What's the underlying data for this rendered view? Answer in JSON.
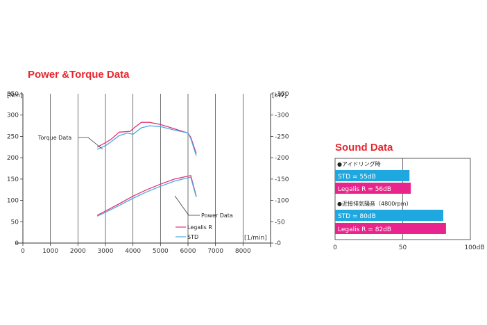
{
  "power_torque": {
    "title": "Power &Torque Data",
    "left_unit": "[Nm]",
    "right_unit": "[kW]",
    "x_unit": "[1/min]",
    "torque_label": "Torque Data",
    "power_label": "Power Data",
    "legend": [
      {
        "name": "Legalis R",
        "color": "#e0337a"
      },
      {
        "name": "STD",
        "color": "#4aa8e0"
      }
    ]
  },
  "sound": {
    "title": "Sound Data",
    "sections": [
      "●アイドリング時",
      "●近接排気騒音（4800rpm）"
    ],
    "bars": [
      {
        "label": "STD = 55dB",
        "value": 55,
        "color": "#1fa8e0"
      },
      {
        "label": "Legalis R = 56dB",
        "value": 56,
        "color": "#e8258c"
      },
      {
        "label": "STD = 80dB",
        "value": 80,
        "color": "#1fa8e0"
      },
      {
        "label": "Legalis R = 82dB",
        "value": 82,
        "color": "#e8258c"
      }
    ],
    "x_ticks": [
      "0",
      "50",
      "100dB"
    ]
  },
  "chart_data": [
    {
      "type": "line",
      "title": "Power &Torque Data",
      "xlabel": "[1/min]",
      "ylabel": "[Nm]",
      "y2label": "[kW]",
      "xlim": [
        0,
        9000
      ],
      "ylim": [
        0,
        350
      ],
      "y2lim": [
        0,
        350
      ],
      "x_ticks": [
        0,
        1000,
        2000,
        3000,
        4000,
        5000,
        6000,
        7000,
        8000
      ],
      "y_ticks": [
        0,
        50,
        100,
        150,
        200,
        250,
        300,
        350
      ],
      "grid": true,
      "legend_position": "bottom-right",
      "series": [
        {
          "name": "Legalis R",
          "group": "torque",
          "axis": "left",
          "color": "#e0337a",
          "x": [
            2700,
            3000,
            3200,
            3500,
            3900,
            4000,
            4300,
            4600,
            5000,
            5500,
            6000,
            6100,
            6300
          ],
          "y": [
            225,
            235,
            243,
            260,
            262,
            268,
            283,
            283,
            278,
            268,
            258,
            248,
            210
          ]
        },
        {
          "name": "STD",
          "group": "torque",
          "axis": "left",
          "color": "#4aa8e0",
          "x": [
            2700,
            3000,
            3200,
            3500,
            3800,
            4000,
            4300,
            4600,
            5000,
            5500,
            6000,
            6100,
            6300
          ],
          "y": [
            220,
            228,
            237,
            252,
            258,
            255,
            270,
            275,
            273,
            265,
            258,
            245,
            205
          ]
        },
        {
          "name": "Legalis R",
          "group": "power",
          "axis": "right",
          "color": "#e0337a",
          "x": [
            2700,
            3000,
            3500,
            4000,
            4500,
            5000,
            5500,
            6000,
            6100,
            6300
          ],
          "y": [
            65,
            75,
            92,
            110,
            125,
            138,
            150,
            157,
            158,
            110
          ]
        },
        {
          "name": "STD",
          "group": "power",
          "axis": "right",
          "color": "#4aa8e0",
          "x": [
            2700,
            3000,
            3500,
            4000,
            4500,
            5000,
            5500,
            6000,
            6100,
            6300
          ],
          "y": [
            63,
            72,
            88,
            105,
            120,
            133,
            145,
            153,
            154,
            108
          ]
        }
      ]
    },
    {
      "type": "bar",
      "orientation": "horizontal",
      "title": "Sound Data",
      "xlim": [
        0,
        100
      ],
      "x_ticks": [
        0,
        50,
        100
      ],
      "xlabel": "dB",
      "categories": [
        "STD = 55dB",
        "Legalis R = 56dB",
        "STD = 80dB",
        "Legalis R = 82dB"
      ],
      "values": [
        55,
        56,
        80,
        82
      ]
    }
  ]
}
